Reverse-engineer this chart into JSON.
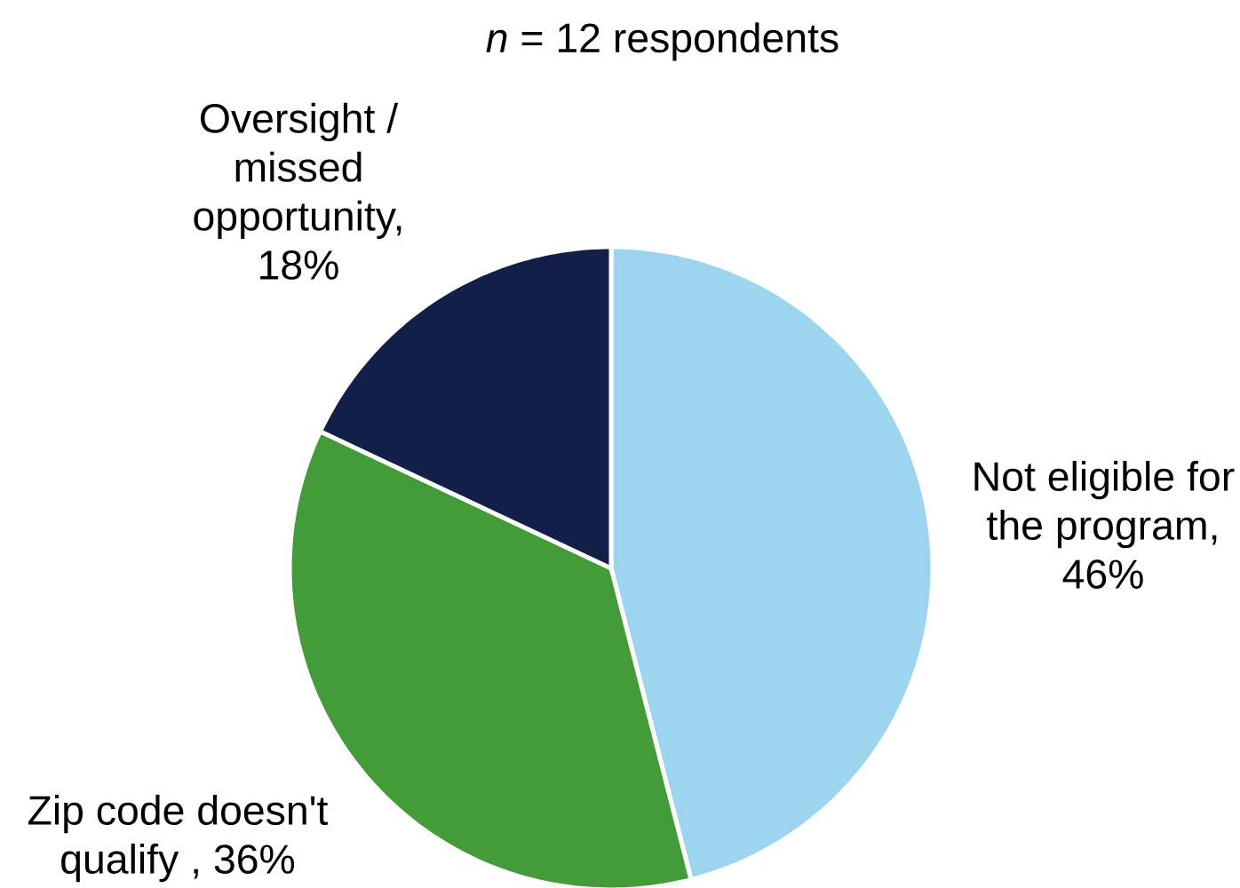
{
  "chart_data": {
    "type": "pie",
    "title": "*n* = 12 respondents",
    "categories": [
      null,
      null,
      null
    ],
    "values": [
      46,
      36,
      18
    ],
    "colors": [
      "#9dd5ef",
      "#439c37",
      "#122049"
    ],
    "value_labels": [
      "Not eligible for the program, 46%",
      "Zip code doesn't qualify , 36%",
      "Oversight / missed opportunity, 18%"
    ]
  }
}
